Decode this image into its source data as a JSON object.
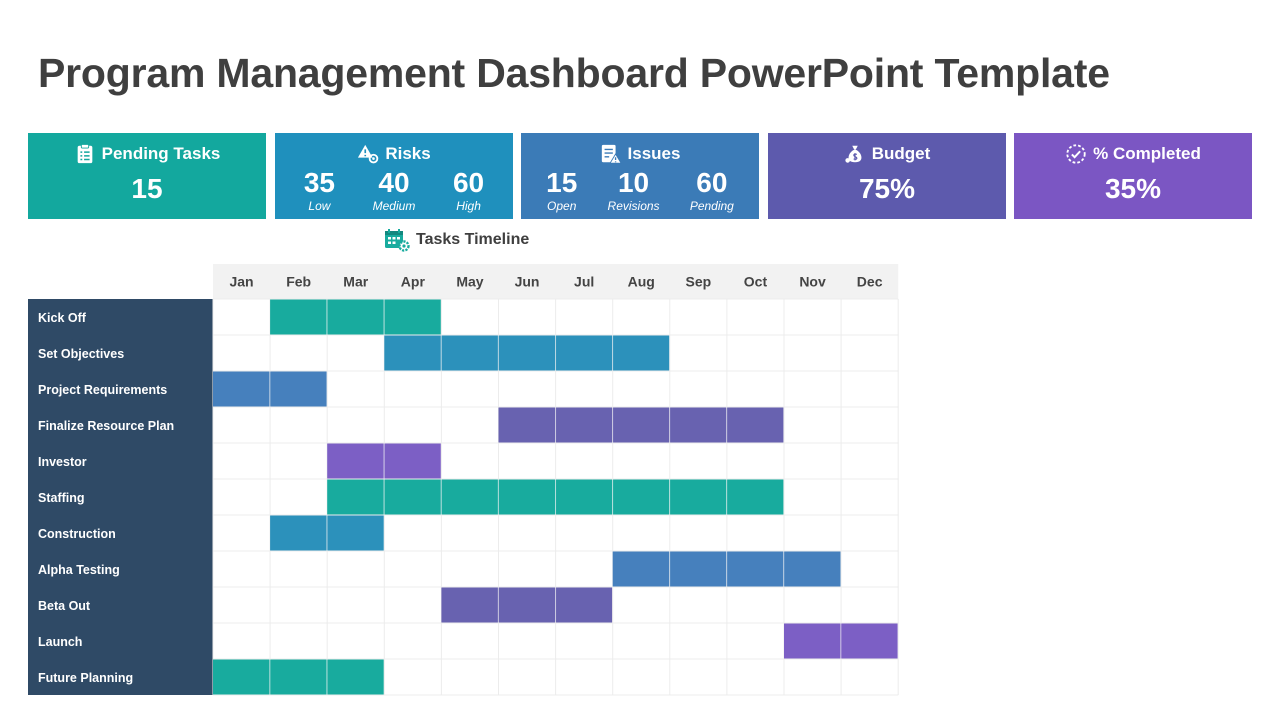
{
  "title": "Program Management Dashboard PowerPoint Template",
  "kpis": {
    "pending": {
      "label": "Pending Tasks",
      "value": "15",
      "color": "#13a89e",
      "icon": "clipboard-icon"
    },
    "risks": {
      "label": "Risks",
      "color": "#1f90bd",
      "icon": "risk-warning-icon",
      "items": [
        {
          "value": "35",
          "label": "Low"
        },
        {
          "value": "40",
          "label": "Medium"
        },
        {
          "value": "60",
          "label": "High"
        }
      ]
    },
    "issues": {
      "label": "Issues",
      "color": "#3b7bb7",
      "icon": "issue-document-icon",
      "items": [
        {
          "value": "15",
          "label": "Open"
        },
        {
          "value": "10",
          "label": "Revisions"
        },
        {
          "value": "60",
          "label": "Pending"
        }
      ]
    },
    "budget": {
      "label": "Budget",
      "value": "75%",
      "color": "#5d5aad",
      "icon": "money-bag-icon"
    },
    "completed": {
      "label": "% Completed",
      "value": "35%",
      "color": "#7b56c3",
      "icon": "progress-check-icon"
    }
  },
  "timeline_title": "Tasks Timeline",
  "chart_data": {
    "type": "table",
    "months": [
      "Jan",
      "Feb",
      "Mar",
      "Apr",
      "May",
      "Jun",
      "Jul",
      "Aug",
      "Sep",
      "Oct",
      "Nov",
      "Dec"
    ],
    "tasks": [
      {
        "name": "Kick Off",
        "start": 2,
        "end": 4,
        "color": "#18ab9e"
      },
      {
        "name": "Set Objectives",
        "start": 4,
        "end": 8,
        "color": "#2c91bb"
      },
      {
        "name": "Project Requirements",
        "start": 1,
        "end": 2,
        "color": "#4680bd"
      },
      {
        "name": "Finalize Resource Plan",
        "start": 6,
        "end": 10,
        "color": "#6862b0"
      },
      {
        "name": "Investor",
        "start": 3,
        "end": 4,
        "color": "#7c5fc5"
      },
      {
        "name": "Staffing",
        "start": 3,
        "end": 10,
        "color": "#18ab9e"
      },
      {
        "name": "Construction",
        "start": 2,
        "end": 3,
        "color": "#2c91bb"
      },
      {
        "name": "Alpha Testing",
        "start": 8,
        "end": 11,
        "color": "#4680bd"
      },
      {
        "name": "Beta Out",
        "start": 5,
        "end": 7,
        "color": "#6862b0"
      },
      {
        "name": "Launch",
        "start": 11,
        "end": 12,
        "color": "#7c5fc5"
      },
      {
        "name": "Future Planning",
        "start": 1,
        "end": 3,
        "color": "#18ab9e"
      }
    ]
  }
}
